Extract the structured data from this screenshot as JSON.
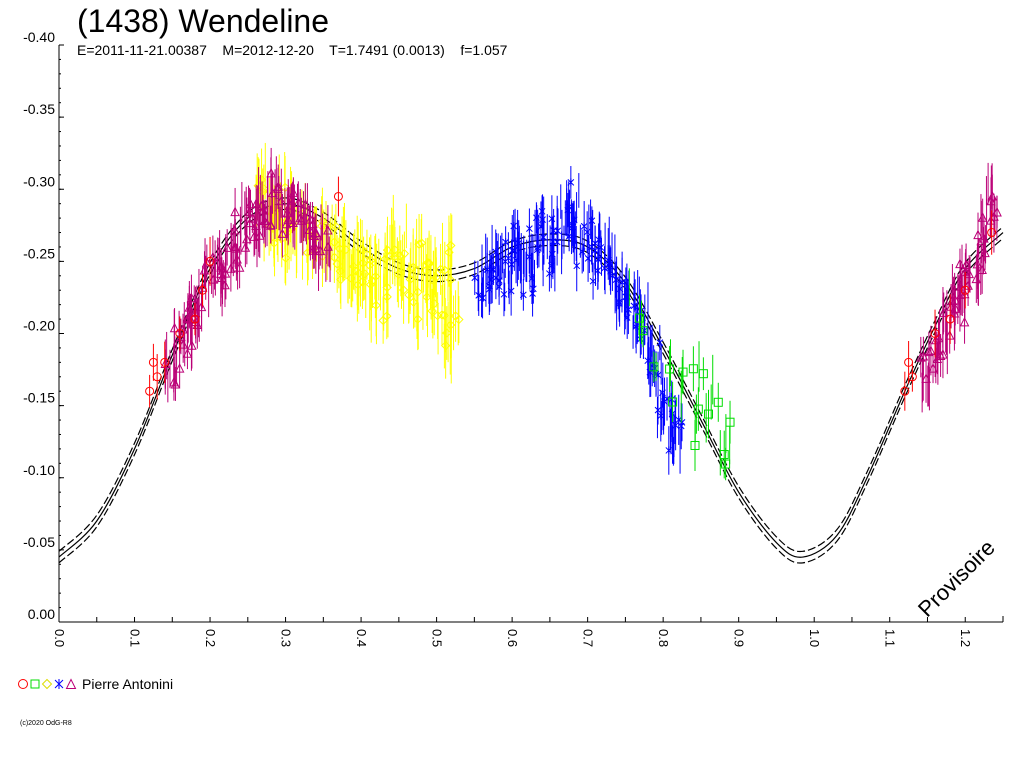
{
  "title": "(1438) Wendeline",
  "subtitle": "E=2011-11-21.00387    M=2012-12-20    T=1.7491 (0.0013)    f=1.057",
  "watermark": "Provisoire",
  "legend": {
    "observer": "Pierre Antonini",
    "symbols": [
      "circle",
      "square",
      "diamond",
      "star",
      "triangle"
    ]
  },
  "copyright": "(c)2020 OdG-R8",
  "colors": {
    "red": "#ff0000",
    "green": "#00dd00",
    "yellow": "#ffff00",
    "blue": "#0000ff",
    "magenta": "#bb0077",
    "fit": "#000000"
  },
  "chart_data": {
    "type": "scatter",
    "xlabel": "",
    "ylabel": "",
    "xlim": [
      0.0,
      1.25
    ],
    "ylim": [
      0.0,
      -0.4
    ],
    "x_ticks": [
      "0.0",
      "0.1",
      "0.2",
      "0.3",
      "0.4",
      "0.5",
      "0.6",
      "0.7",
      "0.8",
      "0.9",
      "1.0",
      "1.1",
      "1.2"
    ],
    "y_ticks": [
      "0.00",
      "-0.05",
      "-0.10",
      "-0.15",
      "-0.20",
      "-0.25",
      "-0.30",
      "-0.35",
      "-0.40"
    ],
    "fit_curve": {
      "x": [
        0.0,
        0.05,
        0.1,
        0.15,
        0.2,
        0.25,
        0.3,
        0.35,
        0.4,
        0.45,
        0.5,
        0.55,
        0.6,
        0.65,
        0.7,
        0.75,
        0.8,
        0.85,
        0.9,
        0.95,
        0.985,
        1.03,
        1.07,
        1.12,
        1.16,
        1.2,
        1.25
      ],
      "y": [
        -0.045,
        -0.07,
        -0.12,
        -0.185,
        -0.245,
        -0.28,
        -0.29,
        -0.28,
        -0.26,
        -0.245,
        -0.24,
        -0.245,
        -0.26,
        -0.265,
        -0.26,
        -0.235,
        -0.19,
        -0.14,
        -0.09,
        -0.055,
        -0.045,
        -0.06,
        -0.1,
        -0.16,
        -0.205,
        -0.245,
        -0.27
      ],
      "offsets": [
        0.0,
        0.004,
        -0.004
      ]
    },
    "series": [
      {
        "marker": "circle",
        "color": "#ff0000",
        "points": [
          [
            0.12,
            -0.16
          ],
          [
            0.125,
            -0.18
          ],
          [
            0.13,
            -0.17
          ],
          [
            0.14,
            -0.18
          ],
          [
            0.16,
            -0.2
          ],
          [
            0.18,
            -0.21
          ],
          [
            0.19,
            -0.23
          ],
          [
            0.2,
            -0.25
          ],
          [
            0.37,
            -0.295
          ],
          [
            1.12,
            -0.16
          ],
          [
            1.125,
            -0.18
          ],
          [
            1.13,
            -0.17
          ],
          [
            1.16,
            -0.2
          ],
          [
            1.18,
            -0.21
          ],
          [
            1.2,
            -0.23
          ],
          [
            1.235,
            -0.27
          ]
        ]
      },
      {
        "marker": "square",
        "color": "#00dd00",
        "points": [
          [
            0.76,
            -0.22
          ],
          [
            0.78,
            -0.2
          ],
          [
            0.79,
            -0.19
          ],
          [
            0.8,
            -0.18
          ],
          [
            0.82,
            -0.165
          ],
          [
            0.83,
            -0.16
          ],
          [
            0.84,
            -0.145
          ],
          [
            0.85,
            -0.17
          ],
          [
            0.86,
            -0.16
          ],
          [
            0.87,
            -0.14
          ],
          [
            0.875,
            -0.12
          ],
          [
            0.88,
            -0.125
          ],
          [
            0.885,
            -0.115
          ],
          [
            0.86,
            -0.155
          ],
          [
            0.84,
            -0.135
          ]
        ]
      },
      {
        "marker": "diamond",
        "color": "#ffff00",
        "points": [
          [
            0.27,
            -0.3
          ],
          [
            0.28,
            -0.28
          ],
          [
            0.29,
            -0.27
          ],
          [
            0.3,
            -0.29
          ],
          [
            0.31,
            -0.26
          ],
          [
            0.33,
            -0.27
          ],
          [
            0.35,
            -0.265
          ],
          [
            0.37,
            -0.26
          ],
          [
            0.38,
            -0.25
          ],
          [
            0.39,
            -0.24
          ],
          [
            0.4,
            -0.25
          ],
          [
            0.41,
            -0.23
          ],
          [
            0.42,
            -0.24
          ],
          [
            0.43,
            -0.22
          ],
          [
            0.44,
            -0.25
          ],
          [
            0.45,
            -0.26
          ],
          [
            0.46,
            -0.24
          ],
          [
            0.47,
            -0.22
          ],
          [
            0.48,
            -0.25
          ],
          [
            0.49,
            -0.23
          ],
          [
            0.5,
            -0.24
          ],
          [
            0.51,
            -0.21
          ],
          [
            0.515,
            -0.25
          ],
          [
            0.52,
            -0.2
          ]
        ]
      },
      {
        "marker": "star",
        "color": "#0000ff",
        "points": [
          [
            0.56,
            -0.23
          ],
          [
            0.57,
            -0.245
          ],
          [
            0.58,
            -0.25
          ],
          [
            0.59,
            -0.24
          ],
          [
            0.6,
            -0.255
          ],
          [
            0.61,
            -0.26
          ],
          [
            0.62,
            -0.24
          ],
          [
            0.63,
            -0.265
          ],
          [
            0.64,
            -0.27
          ],
          [
            0.65,
            -0.255
          ],
          [
            0.66,
            -0.27
          ],
          [
            0.67,
            -0.28
          ],
          [
            0.68,
            -0.29
          ],
          [
            0.69,
            -0.26
          ],
          [
            0.7,
            -0.265
          ],
          [
            0.71,
            -0.25
          ],
          [
            0.72,
            -0.26
          ],
          [
            0.73,
            -0.245
          ],
          [
            0.74,
            -0.23
          ],
          [
            0.75,
            -0.225
          ],
          [
            0.76,
            -0.215
          ],
          [
            0.77,
            -0.205
          ],
          [
            0.78,
            -0.19
          ],
          [
            0.79,
            -0.18
          ],
          [
            0.8,
            -0.15
          ],
          [
            0.81,
            -0.14
          ],
          [
            0.815,
            -0.13
          ]
        ]
      },
      {
        "marker": "triangle",
        "color": "#bb0077",
        "points": [
          [
            0.15,
            -0.17
          ],
          [
            0.16,
            -0.19
          ],
          [
            0.17,
            -0.2
          ],
          [
            0.18,
            -0.21
          ],
          [
            0.19,
            -0.22
          ],
          [
            0.2,
            -0.235
          ],
          [
            0.21,
            -0.24
          ],
          [
            0.22,
            -0.25
          ],
          [
            0.23,
            -0.255
          ],
          [
            0.24,
            -0.27
          ],
          [
            0.25,
            -0.28
          ],
          [
            0.26,
            -0.275
          ],
          [
            0.27,
            -0.29
          ],
          [
            0.28,
            -0.29
          ],
          [
            0.29,
            -0.3
          ],
          [
            0.3,
            -0.28
          ],
          [
            0.31,
            -0.29
          ],
          [
            0.32,
            -0.285
          ],
          [
            0.33,
            -0.275
          ],
          [
            0.34,
            -0.27
          ],
          [
            0.35,
            -0.26
          ],
          [
            1.15,
            -0.17
          ],
          [
            1.16,
            -0.19
          ],
          [
            1.17,
            -0.195
          ],
          [
            1.18,
            -0.21
          ],
          [
            1.19,
            -0.22
          ],
          [
            1.2,
            -0.235
          ],
          [
            1.21,
            -0.245
          ],
          [
            1.22,
            -0.255
          ],
          [
            1.23,
            -0.27
          ],
          [
            1.235,
            -0.29
          ]
        ]
      }
    ]
  }
}
